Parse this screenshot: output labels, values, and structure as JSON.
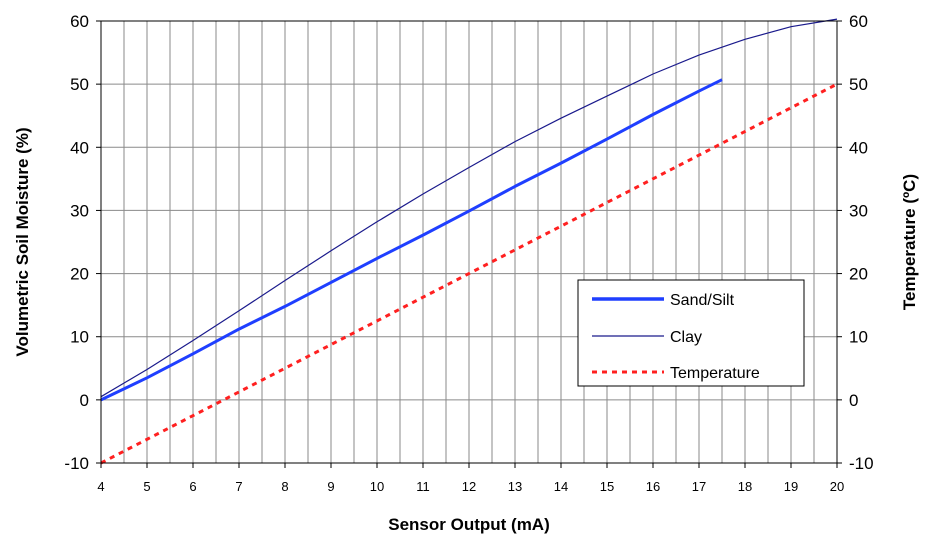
{
  "chart_data": {
    "type": "line",
    "xlabel": "Sensor Output (mA)",
    "ylabel_left": "Volumetric Soil Moisture (%)",
    "ylabel_right": "Temperature (ºC)",
    "xlim": [
      4,
      20
    ],
    "ylim_left": [
      -10,
      60
    ],
    "ylim_right": [
      -10,
      60
    ],
    "x_ticks": [
      "4",
      "5",
      "6",
      "7",
      "8",
      "9",
      "10",
      "11",
      "12",
      "13",
      "14",
      "15",
      "16",
      "17",
      "18",
      "19",
      "20"
    ],
    "y_ticks_left": [
      "-10",
      "0",
      "10",
      "20",
      "30",
      "40",
      "50",
      "60"
    ],
    "y_ticks_right": [
      "-10",
      "0",
      "10",
      "20",
      "30",
      "40",
      "50",
      "60"
    ],
    "x_minor_step": 0.5,
    "grid": true,
    "legend_position": "bottom-right",
    "series": [
      {
        "name": "Sand/Silt",
        "axis": "left",
        "color": "#1f3fff",
        "style": "solid-thick",
        "x": [
          4,
          5,
          6,
          7,
          8,
          9,
          10,
          11,
          12,
          13,
          14,
          15,
          16,
          17,
          17.5
        ],
        "y": [
          0,
          3.5,
          7.3,
          11.2,
          14.8,
          18.6,
          22.4,
          26.1,
          29.9,
          33.8,
          37.5,
          41.3,
          45.2,
          48.9,
          50.7
        ]
      },
      {
        "name": "Clay",
        "axis": "left",
        "color": "#1a1a8c",
        "style": "solid-thin",
        "x": [
          4,
          5,
          6,
          7,
          8,
          9,
          10,
          11,
          12,
          13,
          14,
          15,
          16,
          17,
          18,
          19,
          20
        ],
        "y": [
          0.5,
          4.8,
          9.4,
          14.1,
          18.9,
          23.6,
          28.2,
          32.6,
          36.8,
          40.9,
          44.6,
          48.1,
          51.6,
          54.6,
          57.1,
          59.1,
          60.3
        ]
      },
      {
        "name": "Temperature",
        "axis": "right",
        "color": "#ff2020",
        "style": "dashed",
        "x": [
          4,
          20
        ],
        "y": [
          -10,
          50
        ]
      }
    ]
  }
}
